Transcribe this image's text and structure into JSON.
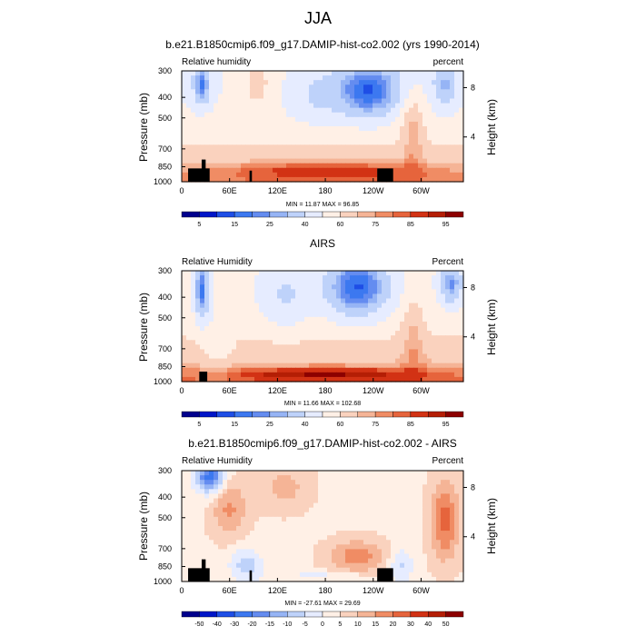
{
  "figure": {
    "season": "JJA"
  },
  "colors": {
    "rh": [
      "#00008c",
      "#0016c8",
      "#1e4ee6",
      "#3c78f0",
      "#648cf0",
      "#96b4f5",
      "#bed2fa",
      "#e6ecff",
      "#fff0e6",
      "#fad2be",
      "#f5b496",
      "#f08c64",
      "#e6643c",
      "#d23214",
      "#b41e05",
      "#8c0000"
    ],
    "diff": [
      "#00008c",
      "#0016c8",
      "#1e4ee6",
      "#3c78f0",
      "#648cf0",
      "#96b4f5",
      "#bed2fa",
      "#e6ecff",
      "#fff0e6",
      "#fad2be",
      "#f5b496",
      "#f08c64",
      "#e6643c",
      "#d23214",
      "#b41e05",
      "#8c0000"
    ],
    "topo": "#000000"
  },
  "chart_data": [
    {
      "type": "heatmap",
      "title": "b.e21.B1850cmip6.f09_g17.DAMIP-hist-co2.002 (yrs 1990-2014)",
      "left_label": "Relative humidity",
      "right_label": "percent",
      "ylabel": "Pressure (mb)",
      "y2label": "Height (km)",
      "xticks": [
        "0",
        "60E",
        "120E",
        "180",
        "120W",
        "60W"
      ],
      "yticks": [
        "300",
        "400",
        "500",
        "700",
        "850",
        "1000"
      ],
      "y2ticks": [
        "8",
        "4"
      ],
      "minmax": "MIN = 11.87  MAX = 96.85",
      "colorbar_labels": [
        "5",
        "15",
        "25",
        "40",
        "60",
        "75",
        "85",
        "95"
      ]
    },
    {
      "type": "heatmap",
      "title": "AIRS",
      "left_label": "Relative Humidity",
      "right_label": "Percent",
      "ylabel": "Pressure (mb)",
      "y2label": "Height (km)",
      "xticks": [
        "0",
        "60E",
        "120E",
        "180",
        "120W",
        "60W"
      ],
      "yticks": [
        "300",
        "400",
        "500",
        "700",
        "850",
        "1000"
      ],
      "y2ticks": [
        "8",
        "4"
      ],
      "minmax": "MIN = 11.66  MAX = 102.68",
      "colorbar_labels": [
        "5",
        "15",
        "25",
        "40",
        "60",
        "75",
        "85",
        "95"
      ]
    },
    {
      "type": "heatmap",
      "title": "b.e21.B1850cmip6.f09_g17.DAMIP-hist-co2.002 - AIRS",
      "left_label": "Relative Humidity",
      "right_label": "Percent",
      "ylabel": "Pressure (mb)",
      "y2label": "Height (km)",
      "xticks": [
        "0",
        "60E",
        "120E",
        "180",
        "120W",
        "60W"
      ],
      "yticks": [
        "300",
        "400",
        "500",
        "700",
        "850",
        "1000"
      ],
      "y2ticks": [
        "8",
        "4"
      ],
      "minmax": "MIN = -27.61  MAX = 29.69",
      "colorbar_labels": [
        "-50",
        "-40",
        "-30",
        "-20",
        "-15",
        "-10",
        "-5",
        "0",
        "5",
        "10",
        "15",
        "20",
        "30",
        "40",
        "50"
      ]
    }
  ]
}
